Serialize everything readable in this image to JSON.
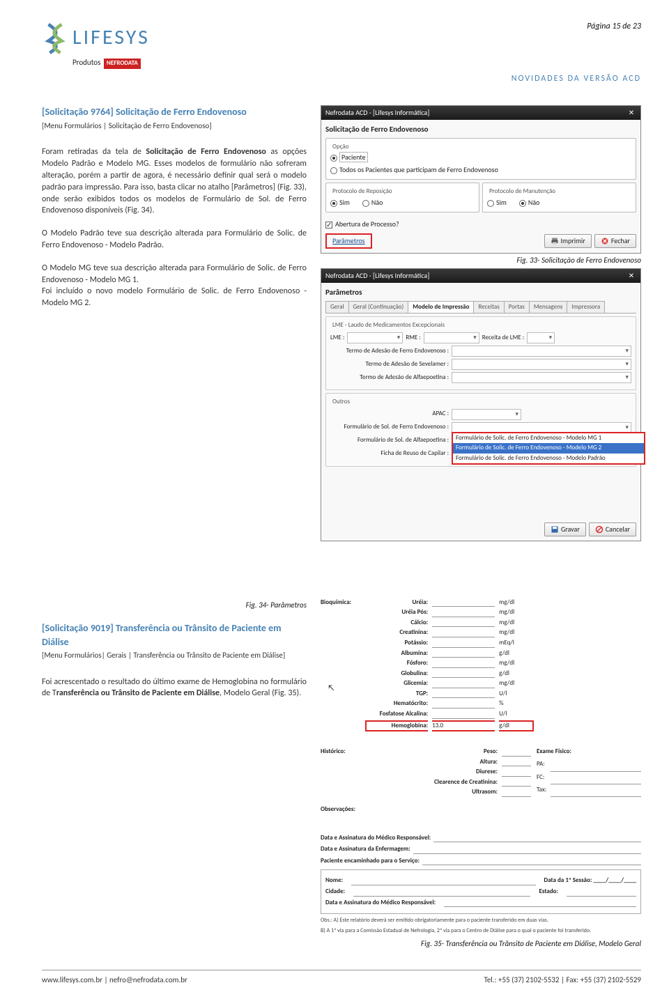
{
  "header": {
    "page_num": "Página 15 de 23",
    "logo_text": "LIFESYS",
    "produtos_prefix": "Produtos",
    "produtos_badge": "NEFRODATA",
    "page_title": "NOVIDADES DA VERSÃO ACD"
  },
  "section1": {
    "title": "[Solicitação 9764] Solicitação de Ferro Endovenoso",
    "menu": "[Menu Formulários | Solicitação de Ferro Endovenoso]",
    "para1_a": "Foram retiradas da tela de ",
    "para1_b": "Solicitação de Ferro Endovenoso",
    "para1_c": " as opções Modelo Padrão e Modelo MG. Esses modelos de formulário não sofreram alteração, porém a partir de agora, é necessário definir qual será o modelo padrão para impressão. Para isso, basta clicar no atalho [Parâmetros] (Fig. 33), onde serão exibidos todos os modelos de Formulário de Sol. de Ferro Endovenoso disponíveis (Fig. 34).",
    "para2": "O Modelo Padrão teve sua descrição alterada para Formulário de Solic. de Ferro Endovenoso - Modelo Padrão.",
    "para3": "O Modelo MG teve sua descrição alterada para Formulário de Solic. de Ferro Endovenoso - Modelo MG 1.",
    "para4": "Foi incluído o novo modelo Formulário de Solic. de Ferro Endovenoso - Modelo MG 2."
  },
  "win1": {
    "title": "Nefrodata ACD - [Lifesys Informática]",
    "subtitle": "Solicitação de Ferro Endovenoso",
    "opcao": "Opção",
    "opt_paciente": "Paciente",
    "opt_todos": "Todos os Pacientes que participam de Ferro Endovenoso",
    "proto_repos": "Protocolo de Reposição",
    "proto_manut": "Protocolo de Manutenção",
    "sim": "Sim",
    "nao": "Não",
    "abertura": "Abertura de Processo?",
    "parametros": "Parâmetros",
    "imprimir": "Imprimir",
    "fechar": "Fechar"
  },
  "fig33": "Fig. 33- Solicitação de Ferro Endovenoso",
  "win2": {
    "title": "Nefrodata ACD - [Lifesys Informática]",
    "subtitle": "Parâmetros",
    "tabs": [
      "Geral",
      "Geral (Continuação)",
      "Modelo de Impressão",
      "Receitas",
      "Portas",
      "Mensagens",
      "Impressora"
    ],
    "active_tab": 2,
    "lme_group": "LME - Laudo de Medicamentos Excepcionais",
    "lme": "LME :",
    "rme": "RME :",
    "receita_lme": "Receita de LME :",
    "termo_ferro": "Termo de Adesão de Ferro Endovenoso :",
    "termo_sevelamer": "Termo de Adesão de Sevelamer :",
    "termo_alfa": "Termo de Adesão de Alfaepoetina :",
    "outros": "Outros",
    "apac": "APAC :",
    "form_ferro": "Formulário de Sol. de Ferro Endovenoso :",
    "form_alfa": "Formulário de Sol. de Alfaepoetina :",
    "ficha_reuso": "Ficha de Reuso de Capilar :",
    "dd1": "Formulário de Solic. de Ferro Endovenoso - Modelo MG 1",
    "dd2": "Formulário de Solic. de Ferro Endovenoso - Modelo MG 2",
    "dd3": "Formulário de Solic. de Ferro Endovenoso - Modelo Padrão",
    "gravar": "Gravar",
    "cancelar": "Cancelar"
  },
  "fig34": "Fig. 34- Parâmetros",
  "section2": {
    "title": "[Solicitação 9019] Transferência ou Trânsito de Paciente em Diálise",
    "menu": "[Menu Formulários| Gerais | Transferência ou Trânsito de Paciente em Diálise]",
    "para_a": "Foi acrescentado o resultado do último exame de Hemoglobina no formulário de T",
    "para_b": "ransferência ou Trânsito de Paciente em Diálise",
    "para_c": ", Modelo Geral (Fig. 35)."
  },
  "bioq": {
    "heading": "Bioquímica:",
    "rows": [
      {
        "label": "Uréia:",
        "unit": "mg/dl"
      },
      {
        "label": "Uréia Pós:",
        "unit": "mg/dl"
      },
      {
        "label": "Cálcio:",
        "unit": "mg/dl"
      },
      {
        "label": "Creatinina:",
        "unit": "mg/dl"
      },
      {
        "label": "Potássio:",
        "unit": "mEq/l"
      },
      {
        "label": "Albumina:",
        "unit": "g/dl"
      },
      {
        "label": "Fósforo:",
        "unit": "mg/dl"
      },
      {
        "label": "Globulina:",
        "unit": "g/dl"
      },
      {
        "label": "Glicemia:",
        "unit": "mg/dl"
      },
      {
        "label": "TGP:",
        "unit": "U/l"
      },
      {
        "label": "Hematócrito:",
        "unit": "%"
      },
      {
        "label": "Fosfatose Alcalina:",
        "unit": "U/l"
      }
    ],
    "hemo_label": "Hemoglobina:",
    "hemo_val": "13.0",
    "hemo_unit": "g/dl",
    "historico": "Histórico:",
    "hist_rows": [
      "Peso:",
      "Altura:",
      "Diurese:",
      "Clearence de Creatinina:",
      "Ultrasom:"
    ],
    "exame": "Exame Físico:",
    "exame_rows": [
      "PA:",
      "FC:",
      "Tax:"
    ],
    "obs": "Observações:",
    "sign1": "Data e Assinatura do Médico Responsável:",
    "sign2": "Data e Assinatura da Enfermagem:",
    "sign3": "Paciente encaminhado para o Serviço:",
    "nome": "Nome:",
    "data1": "Data da 1ª Sessão:  ____/____/____",
    "cidade": "Cidade:",
    "estado": "Estado:",
    "sign4": "Data e Assinatura do Médico Responsável:",
    "note1": "Obs.: A) Este relatório deverá ser emitido obrigatoriamente para o paciente transferido em duas vias.",
    "note2": "B) A 1ª via para a Comissão Estadual de Nefrologia, 2ª via para o Centro de Diálise para o qual o paciente foi transferido."
  },
  "fig35": "Fig. 35- Transferência ou Trânsito de Paciente em Diálise, Modelo Geral",
  "footer": {
    "left": "www.lifesys.com.br    |    nefro@nefrodata.com.br",
    "right": "Tel.: +55 (37) 2102-5532    |    Fax: +55 (37) 2102-5529"
  },
  "colors": {
    "brand_blue": "#4782b4",
    "red_box": "#d22"
  }
}
